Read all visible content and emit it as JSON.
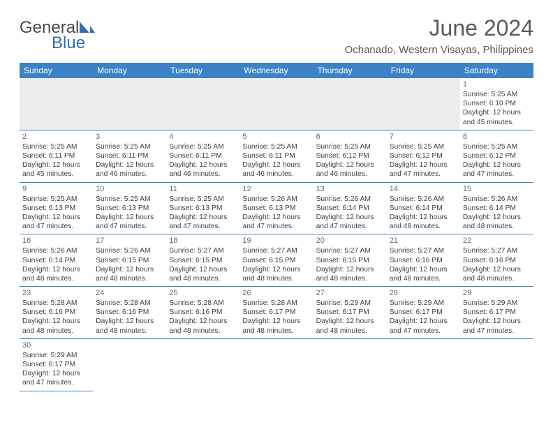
{
  "logo": {
    "general": "General",
    "blue": "Blue"
  },
  "title": "June 2024",
  "location": "Ochanado, Western Visayas, Philippines",
  "colors": {
    "header_bg": "#3b83c6",
    "header_text": "#ffffff",
    "cell_border": "#3b83c6",
    "text": "#404040",
    "title_text": "#5a5a5a",
    "empty_bg": "#ededed"
  },
  "weekdays": [
    "Sunday",
    "Monday",
    "Tuesday",
    "Wednesday",
    "Thursday",
    "Friday",
    "Saturday"
  ],
  "rows": [
    [
      null,
      null,
      null,
      null,
      null,
      null,
      {
        "d": "1",
        "sr": "5:25 AM",
        "ss": "6:10 PM",
        "dl": "12 hours and 45 minutes."
      }
    ],
    [
      {
        "d": "2",
        "sr": "5:25 AM",
        "ss": "6:11 PM",
        "dl": "12 hours and 45 minutes."
      },
      {
        "d": "3",
        "sr": "5:25 AM",
        "ss": "6:11 PM",
        "dl": "12 hours and 46 minutes."
      },
      {
        "d": "4",
        "sr": "5:25 AM",
        "ss": "6:11 PM",
        "dl": "12 hours and 46 minutes."
      },
      {
        "d": "5",
        "sr": "5:25 AM",
        "ss": "6:11 PM",
        "dl": "12 hours and 46 minutes."
      },
      {
        "d": "6",
        "sr": "5:25 AM",
        "ss": "6:12 PM",
        "dl": "12 hours and 46 minutes."
      },
      {
        "d": "7",
        "sr": "5:25 AM",
        "ss": "6:12 PM",
        "dl": "12 hours and 47 minutes."
      },
      {
        "d": "8",
        "sr": "5:25 AM",
        "ss": "6:12 PM",
        "dl": "12 hours and 47 minutes."
      }
    ],
    [
      {
        "d": "9",
        "sr": "5:25 AM",
        "ss": "6:13 PM",
        "dl": "12 hours and 47 minutes."
      },
      {
        "d": "10",
        "sr": "5:25 AM",
        "ss": "6:13 PM",
        "dl": "12 hours and 47 minutes."
      },
      {
        "d": "11",
        "sr": "5:25 AM",
        "ss": "6:13 PM",
        "dl": "12 hours and 47 minutes."
      },
      {
        "d": "12",
        "sr": "5:26 AM",
        "ss": "6:13 PM",
        "dl": "12 hours and 47 minutes."
      },
      {
        "d": "13",
        "sr": "5:26 AM",
        "ss": "6:14 PM",
        "dl": "12 hours and 47 minutes."
      },
      {
        "d": "14",
        "sr": "5:26 AM",
        "ss": "6:14 PM",
        "dl": "12 hours and 48 minutes."
      },
      {
        "d": "15",
        "sr": "5:26 AM",
        "ss": "6:14 PM",
        "dl": "12 hours and 48 minutes."
      }
    ],
    [
      {
        "d": "16",
        "sr": "5:26 AM",
        "ss": "6:14 PM",
        "dl": "12 hours and 48 minutes."
      },
      {
        "d": "17",
        "sr": "5:26 AM",
        "ss": "6:15 PM",
        "dl": "12 hours and 48 minutes."
      },
      {
        "d": "18",
        "sr": "5:27 AM",
        "ss": "6:15 PM",
        "dl": "12 hours and 48 minutes."
      },
      {
        "d": "19",
        "sr": "5:27 AM",
        "ss": "6:15 PM",
        "dl": "12 hours and 48 minutes."
      },
      {
        "d": "20",
        "sr": "5:27 AM",
        "ss": "6:15 PM",
        "dl": "12 hours and 48 minutes."
      },
      {
        "d": "21",
        "sr": "5:27 AM",
        "ss": "6:16 PM",
        "dl": "12 hours and 48 minutes."
      },
      {
        "d": "22",
        "sr": "5:27 AM",
        "ss": "6:16 PM",
        "dl": "12 hours and 48 minutes."
      }
    ],
    [
      {
        "d": "23",
        "sr": "5:28 AM",
        "ss": "6:16 PM",
        "dl": "12 hours and 48 minutes."
      },
      {
        "d": "24",
        "sr": "5:28 AM",
        "ss": "6:16 PM",
        "dl": "12 hours and 48 minutes."
      },
      {
        "d": "25",
        "sr": "5:28 AM",
        "ss": "6:16 PM",
        "dl": "12 hours and 48 minutes."
      },
      {
        "d": "26",
        "sr": "5:28 AM",
        "ss": "6:17 PM",
        "dl": "12 hours and 48 minutes."
      },
      {
        "d": "27",
        "sr": "5:29 AM",
        "ss": "6:17 PM",
        "dl": "12 hours and 48 minutes."
      },
      {
        "d": "28",
        "sr": "5:29 AM",
        "ss": "6:17 PM",
        "dl": "12 hours and 47 minutes."
      },
      {
        "d": "29",
        "sr": "5:29 AM",
        "ss": "6:17 PM",
        "dl": "12 hours and 47 minutes."
      }
    ],
    [
      {
        "d": "30",
        "sr": "5:29 AM",
        "ss": "6:17 PM",
        "dl": "12 hours and 47 minutes."
      },
      null,
      null,
      null,
      null,
      null,
      null
    ]
  ],
  "labels": {
    "sunrise": "Sunrise:",
    "sunset": "Sunset:",
    "daylight": "Daylight:"
  }
}
